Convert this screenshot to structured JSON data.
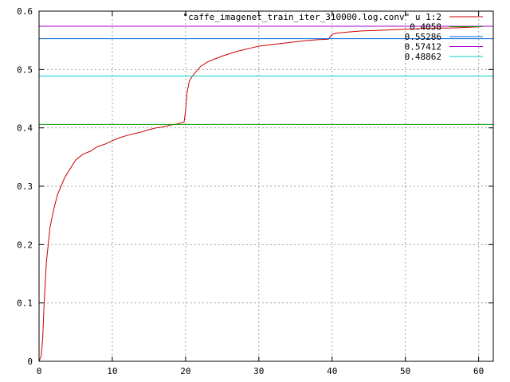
{
  "chart_data": {
    "type": "line",
    "title": "",
    "xlabel": "",
    "ylabel": "",
    "xlim": [
      0,
      62
    ],
    "ylim": [
      0,
      0.6
    ],
    "grid": true,
    "legend_position": "top-right",
    "x_ticks": [
      "0",
      "10",
      "20",
      "30",
      "40",
      "50",
      "60"
    ],
    "y_ticks": [
      "0",
      "0.1",
      "0.2",
      "0.3",
      "0.4",
      "0.5",
      "0.6"
    ],
    "series": [
      {
        "name": "\"caffe_imagenet_train_iter_310000.log.conv\" u 1:2",
        "color": "#cc0000",
        "x": [
          0,
          0.3,
          0.5,
          0.7,
          1,
          1.5,
          2,
          2.5,
          3,
          3.5,
          4,
          4.5,
          5,
          5.5,
          6,
          7,
          8,
          9,
          10,
          11,
          12,
          13,
          14,
          15,
          16,
          17,
          18,
          19,
          19.8,
          20,
          20.2,
          20.5,
          21,
          22,
          23,
          24,
          25,
          26,
          27,
          28,
          29,
          30,
          32,
          34,
          36,
          38,
          39.5,
          40,
          40.5,
          42,
          44,
          46,
          48,
          50,
          52,
          54,
          56,
          58,
          60
        ],
        "y": [
          0,
          0.01,
          0.04,
          0.1,
          0.17,
          0.23,
          0.26,
          0.285,
          0.3,
          0.315,
          0.325,
          0.335,
          0.345,
          0.35,
          0.355,
          0.36,
          0.368,
          0.372,
          0.378,
          0.383,
          0.387,
          0.39,
          0.393,
          0.397,
          0.4,
          0.402,
          0.405,
          0.407,
          0.41,
          0.43,
          0.46,
          0.48,
          0.49,
          0.505,
          0.513,
          0.518,
          0.523,
          0.527,
          0.531,
          0.534,
          0.537,
          0.54,
          0.543,
          0.546,
          0.549,
          0.551,
          0.552,
          0.56,
          0.562,
          0.564,
          0.566,
          0.567,
          0.568,
          0.569,
          0.57,
          0.571,
          0.571,
          0.572,
          0.573
        ]
      },
      {
        "name": "0.4058",
        "color": "#009900",
        "y_constant": 0.4058
      },
      {
        "name": "0.55286",
        "color": "#0066dd",
        "y_constant": 0.55286
      },
      {
        "name": "0.57412",
        "color": "#aa00cc",
        "y_constant": 0.57412
      },
      {
        "name": "0.48862",
        "color": "#00cccc",
        "y_constant": 0.48862
      }
    ]
  }
}
